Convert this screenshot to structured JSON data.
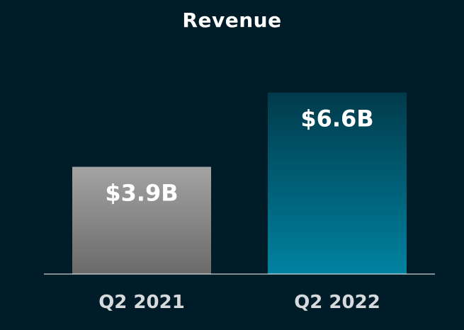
{
  "chart_data": {
    "type": "bar",
    "title": "Revenue",
    "categories": [
      "Q2 2021",
      "Q2 2022"
    ],
    "values": [
      3.9,
      6.6
    ],
    "data_labels": [
      "$3.9B",
      "$6.6B"
    ],
    "unit": "$B",
    "xlabel": "",
    "ylabel": "",
    "ylim": [
      0,
      7.7
    ],
    "grid": false,
    "legend": "none",
    "colors": {
      "background": "#001c28",
      "bar_2021_top": "#a3a3a3",
      "bar_2021_bottom": "#6a6a6a",
      "bar_2022_top": "#003a4a",
      "bar_2022_bottom": "#0082a0",
      "baseline": "#ffffff",
      "title": "#ffffff",
      "tick_label": "#d6dadd"
    }
  }
}
